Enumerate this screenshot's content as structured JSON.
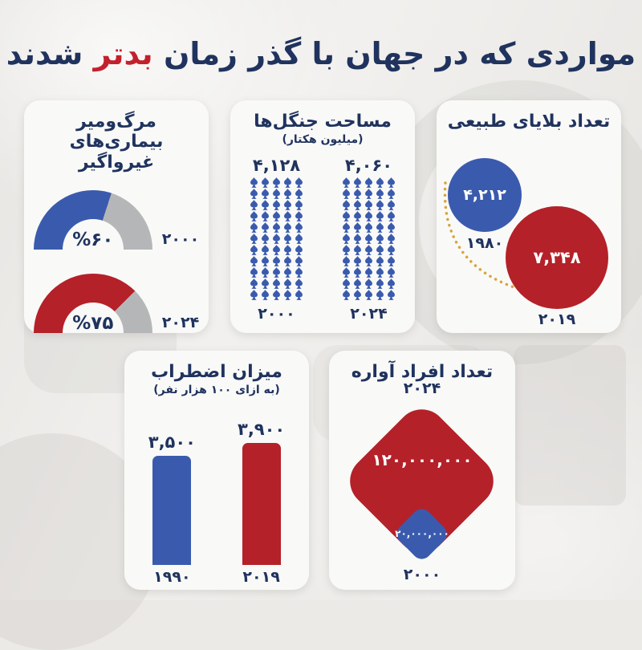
{
  "page": {
    "title_prefix": "مواردی که در جهان با گذر زمان",
    "title_highlight": "بدتر",
    "title_suffix": "شدند"
  },
  "colors": {
    "navy_text": "#20335e",
    "accent_red": "#c3202e",
    "chart_blue": "#3a5bad",
    "chart_red": "#b42129",
    "gauge_gray": "#b5b6b8",
    "dotted_arc_orange": "#d9a43c",
    "card_bg": "#f9f9f8",
    "page_bg": "#eceae7"
  },
  "cards": {
    "ncd": {
      "title_line1": "مرگ‌ومیر",
      "title_line2": "بیماری‌های غیرواگیر",
      "gauges": [
        {
          "percent": 60,
          "label": "%۶۰",
          "year": "۲۰۰۰",
          "color": "#3a5bad"
        },
        {
          "percent": 75,
          "label": "%۷۵",
          "year": "۲۰۲۴",
          "color": "#b42129"
        }
      ]
    },
    "forests": {
      "title": "مساحت جنگل‌ها",
      "subtitle": "(میلیون هکتار)",
      "icon": "tree-icon",
      "columns": [
        {
          "value_label": "۴,۱۲۸",
          "year": "۲۰۰۰",
          "trees": 55
        },
        {
          "value_label": "۴,۰۶۰",
          "year": "۲۰۲۴",
          "trees": 55
        }
      ]
    },
    "disasters": {
      "title": "تعداد بلایای طبیعی",
      "bubbles": [
        {
          "value_label": "۴,۲۱۲",
          "year": "۱۹۸۰",
          "color": "#3a5bad"
        },
        {
          "value_label": "۷,۳۴۸",
          "year": "۲۰۱۹",
          "color": "#b42129"
        }
      ]
    },
    "anxiety": {
      "title": "میزان اضطراب",
      "subtitle": "(به ازای ۱۰۰ هزار نفر)",
      "bars": [
        {
          "value": 3500,
          "value_label": "۳,۵۰۰",
          "year": "۱۹۹۰",
          "color": "#3a5bad"
        },
        {
          "value": 3900,
          "value_label": "۳,۹۰۰",
          "year": "۲۰۱۹",
          "color": "#b42129"
        }
      ]
    },
    "displaced": {
      "title": "تعداد افراد آواره",
      "top_year": "۲۰۲۴",
      "big": {
        "value_label": "۱۲۰,۰۰۰,۰۰۰",
        "color": "#b42129"
      },
      "small": {
        "value_label": "۲۰,۰۰۰,۰۰۰",
        "color": "#3a5bad"
      },
      "bottom_year": "۲۰۰۰"
    }
  },
  "chart_data": [
    {
      "type": "pie",
      "variant": "semicircle-gauge-pair",
      "title": "مرگ‌ومیر بیماری‌های غیرواگیر",
      "categories": [
        "2000",
        "2024"
      ],
      "values": [
        60,
        75
      ],
      "unit": "%",
      "colors": [
        "#3a5bad",
        "#b42129"
      ]
    },
    {
      "type": "bar",
      "variant": "tree-pictogram",
      "title": "مساحت جنگل‌ها",
      "subtitle": "میلیون هکتار",
      "categories": [
        "2000",
        "2024"
      ],
      "values": [
        4128,
        4060
      ],
      "colors": [
        "#3a5bad",
        "#3a5bad"
      ]
    },
    {
      "type": "scatter",
      "variant": "proportional-bubbles",
      "title": "تعداد بلایای طبیعی",
      "categories": [
        "1980",
        "2019"
      ],
      "values": [
        4212,
        7348
      ],
      "colors": [
        "#3a5bad",
        "#b42129"
      ]
    },
    {
      "type": "bar",
      "title": "میزان اضطراب",
      "subtitle": "به ازای ۱۰۰ هزار نفر",
      "categories": [
        "1990",
        "2019"
      ],
      "values": [
        3500,
        3900
      ],
      "colors": [
        "#3a5bad",
        "#b42129"
      ],
      "ylim": [
        0,
        3900
      ]
    },
    {
      "type": "scatter",
      "variant": "proportional-diamonds",
      "title": "تعداد افراد آواره",
      "categories": [
        "2024",
        "2000"
      ],
      "values": [
        120000000,
        20000000
      ],
      "colors": [
        "#b42129",
        "#3a5bad"
      ]
    }
  ]
}
